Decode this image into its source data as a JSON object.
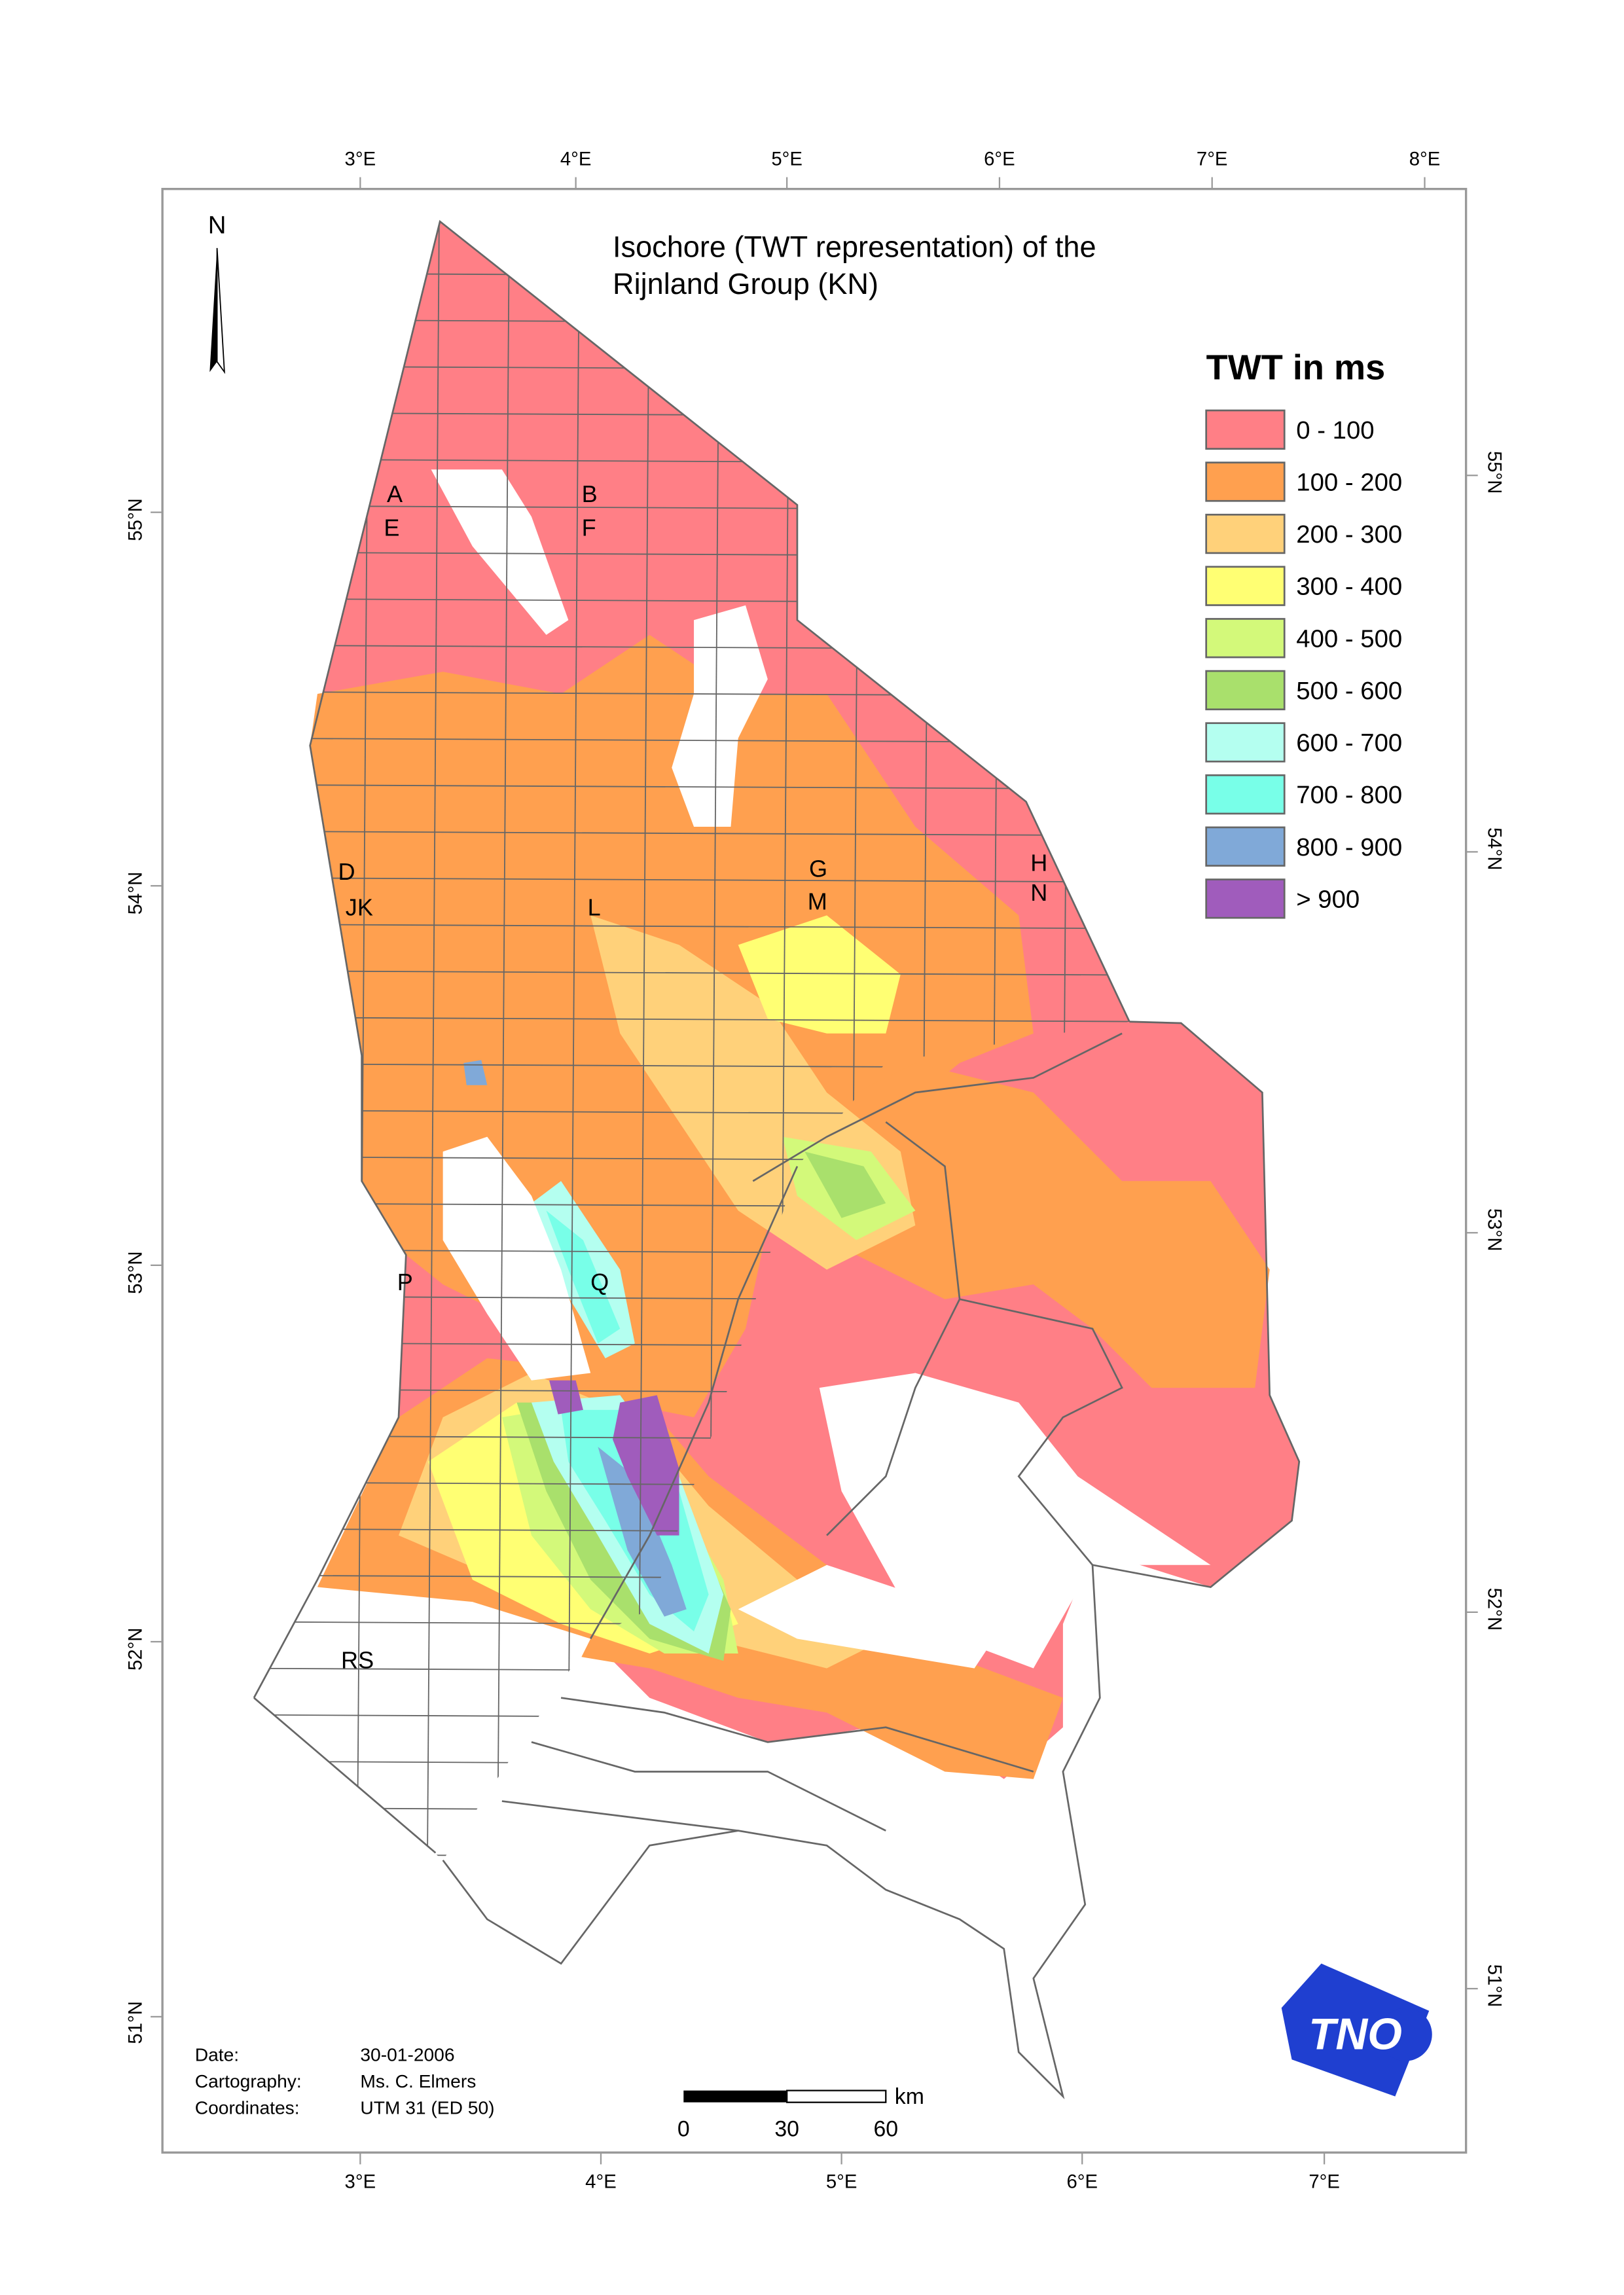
{
  "title": {
    "lines": [
      "Isochore (TWT representation) of the",
      "Rijnland Group (KN)"
    ]
  },
  "north": "N",
  "legend": {
    "title": "TWT  in ms",
    "items": [
      {
        "label": "0   - 100",
        "color": "#ff7f86"
      },
      {
        "label": "100 - 200",
        "color": "#ffa04f"
      },
      {
        "label": "200 - 300",
        "color": "#ffd17a"
      },
      {
        "label": "300 - 400",
        "color": "#ffff73"
      },
      {
        "label": "400 - 500",
        "color": "#d3f97a"
      },
      {
        "label": "500 - 600",
        "color": "#a9e06c"
      },
      {
        "label": "600 - 700",
        "color": "#b4fff0"
      },
      {
        "label": "700 - 800",
        "color": "#78ffe8"
      },
      {
        "label": "800 - 900",
        "color": "#80a9d8"
      },
      {
        "label": "> 900",
        "color": "#a05cbc"
      }
    ]
  },
  "graticule": {
    "top": [
      "3°E",
      "4°E",
      "5°E",
      "6°E",
      "7°E",
      "8°E"
    ],
    "bottom": [
      "3°E",
      "4°E",
      "5°E",
      "6°E",
      "7°E"
    ],
    "left": [
      "55°N",
      "54°N",
      "53°N",
      "52°N",
      "51°N"
    ],
    "right": [
      "55°N",
      "54°N",
      "53°N",
      "52°N",
      "51°N"
    ]
  },
  "blocks": [
    "A",
    "E",
    "B",
    "F",
    "D",
    "JK",
    "L",
    "G",
    "M",
    "H",
    "N",
    "P",
    "Q",
    "RS"
  ],
  "metadata": [
    {
      "label": "Date:",
      "value": "30-01-2006"
    },
    {
      "label": "Cartography:",
      "value": "Ms. C. Elmers"
    },
    {
      "label": "Coordinates:",
      "value": "UTM 31 (ED 50)"
    }
  ],
  "scale_bar": {
    "unit": "km",
    "ticks": [
      0,
      30,
      60
    ]
  },
  "logo": "TNO"
}
